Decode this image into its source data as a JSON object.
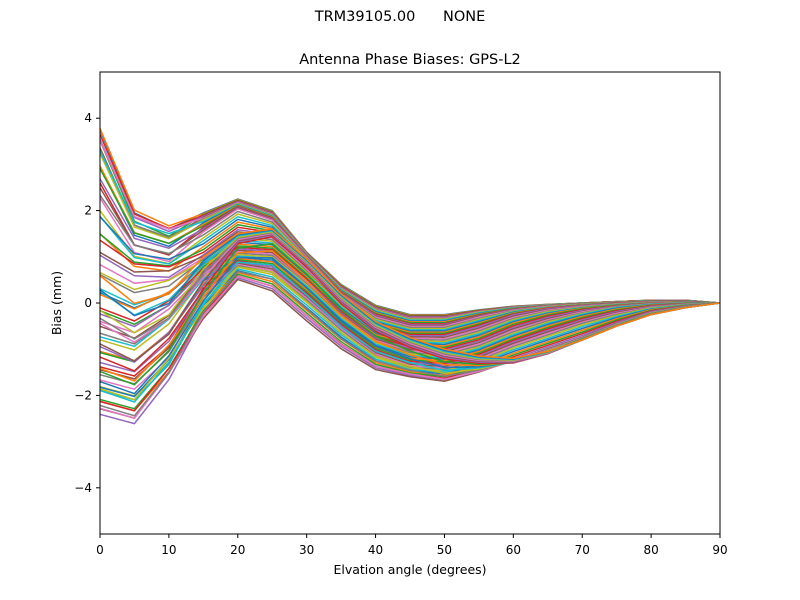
{
  "suptitle": "TRM39105.00      NONE",
  "chart_data": {
    "type": "line",
    "title": "Antenna Phase Biases: GPS-L2",
    "xlabel": "Elvation angle (degrees)",
    "ylabel": "Bias (mm)",
    "xlim": [
      0,
      90
    ],
    "ylim": [
      -5,
      5
    ],
    "xticks": [
      0,
      10,
      20,
      30,
      40,
      50,
      60,
      70,
      80,
      90
    ],
    "yticks": [
      -4,
      -2,
      0,
      2,
      4
    ],
    "xtick_labels": [
      "0",
      "10",
      "20",
      "30",
      "40",
      "50",
      "60",
      "70",
      "80",
      "90"
    ],
    "ytick_labels": [
      "−4",
      "−2",
      "0",
      "2",
      "4"
    ],
    "grid": false,
    "legend": "none",
    "x": [
      0,
      5,
      10,
      15,
      20,
      25,
      30,
      35,
      40,
      45,
      50,
      55,
      60,
      65,
      70,
      75,
      80,
      85,
      90
    ],
    "series_count": 72,
    "representative_series": [
      {
        "values": [
          3.75,
          1.95,
          1.6,
          1.95,
          2.25,
          2.0,
          1.1,
          0.4,
          -0.05,
          -0.25,
          -0.25,
          -0.15,
          -0.07,
          -0.03,
          0.0,
          0.03,
          0.06,
          0.06,
          0.0
        ]
      },
      {
        "values": [
          3.3,
          1.7,
          1.45,
          1.8,
          2.15,
          1.9,
          1.05,
          0.3,
          -0.15,
          -0.35,
          -0.35,
          -0.2,
          -0.1,
          -0.04,
          0.0,
          0.03,
          0.05,
          0.05,
          0.0
        ]
      },
      {
        "values": [
          2.4,
          1.2,
          1.0,
          1.55,
          2.05,
          1.8,
          1.0,
          0.2,
          -0.3,
          -0.5,
          -0.5,
          -0.3,
          -0.15,
          -0.07,
          -0.02,
          0.02,
          0.04,
          0.04,
          0.0
        ]
      },
      {
        "values": [
          1.2,
          0.75,
          0.7,
          1.05,
          1.6,
          1.5,
          0.8,
          0.05,
          -0.5,
          -0.7,
          -0.7,
          -0.5,
          -0.25,
          -0.12,
          -0.05,
          0.0,
          0.03,
          0.03,
          0.0
        ]
      },
      {
        "values": [
          0.0,
          -0.3,
          0.1,
          0.8,
          1.25,
          1.2,
          0.55,
          -0.15,
          -0.7,
          -0.9,
          -0.95,
          -0.75,
          -0.45,
          -0.25,
          -0.12,
          -0.05,
          0.0,
          0.02,
          0.0
        ]
      },
      {
        "values": [
          -0.9,
          -1.1,
          -0.5,
          0.5,
          1.0,
          0.95,
          0.35,
          -0.35,
          -0.9,
          -1.15,
          -1.2,
          -1.0,
          -0.7,
          -0.45,
          -0.25,
          -0.1,
          -0.03,
          0.0,
          0.0
        ]
      },
      {
        "values": [
          -1.7,
          -1.9,
          -1.2,
          0.1,
          0.8,
          0.65,
          0.05,
          -0.6,
          -1.15,
          -1.4,
          -1.45,
          -1.25,
          -0.95,
          -0.7,
          -0.45,
          -0.25,
          -0.1,
          -0.03,
          0.0
        ]
      },
      {
        "values": [
          -2.4,
          -2.6,
          -1.6,
          -0.35,
          0.5,
          0.25,
          -0.4,
          -1.0,
          -1.45,
          -1.6,
          -1.7,
          -1.5,
          -1.25,
          -1.0,
          -0.75,
          -0.45,
          -0.2,
          -0.08,
          0.0
        ]
      },
      {
        "values": [
          -1.2,
          -1.5,
          -0.8,
          0.3,
          1.3,
          1.45,
          0.8,
          0.0,
          -0.6,
          -0.95,
          -1.2,
          -1.3,
          -1.3,
          -1.1,
          -0.8,
          -0.5,
          -0.25,
          -0.1,
          0.0
        ]
      },
      {
        "values": [
          0.6,
          0.0,
          0.2,
          1.0,
          1.5,
          1.6,
          0.95,
          0.2,
          -0.4,
          -0.75,
          -1.0,
          -1.15,
          -1.2,
          -1.05,
          -0.8,
          -0.5,
          -0.25,
          -0.1,
          0.0
        ]
      }
    ],
    "colors": [
      "#1f77b4",
      "#ff7f0e",
      "#2ca02c",
      "#d62728",
      "#9467bd",
      "#8c564b",
      "#e377c2",
      "#7f7f7f",
      "#bcbd22",
      "#17becf"
    ]
  }
}
